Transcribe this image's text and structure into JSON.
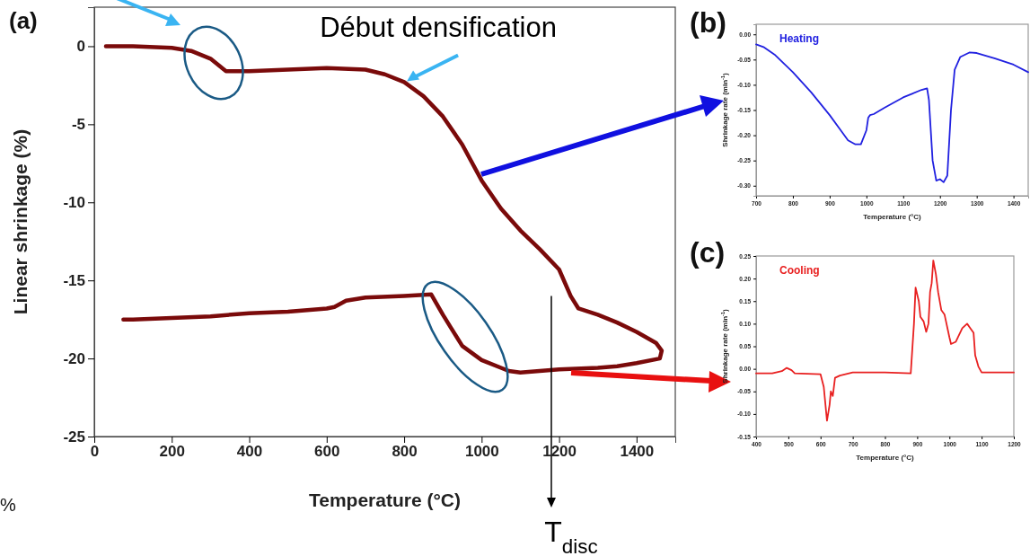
{
  "chart_data": [
    {
      "type": "line",
      "xlabel": "Temperature (°C)",
      "ylabel": "Linear shrinkage (%)",
      "xlim": [
        0,
        1500
      ],
      "ylim": [
        -25,
        2.5
      ],
      "xticks": [
        0,
        200,
        400,
        600,
        800,
        1000,
        1200,
        1400
      ],
      "yticks": [
        -25,
        -20,
        -15,
        -10,
        -5,
        0
      ],
      "grid": false,
      "legend": false,
      "series": [
        {
          "color": "#7a0a0a",
          "x": [
            30,
            100,
            200,
            250,
            300,
            340,
            360,
            400,
            500,
            600,
            700,
            750,
            800,
            850,
            900,
            950,
            1000,
            1050,
            1100,
            1150,
            1200,
            1230,
            1250,
            1300,
            1350,
            1400,
            1450,
            1465,
            1460,
            1400,
            1350,
            1300,
            1200,
            1100,
            1070,
            1050,
            1000,
            950,
            920,
            900,
            870,
            800,
            700,
            650,
            620,
            600,
            500,
            400,
            300,
            200,
            100,
            75
          ],
          "values": [
            0,
            0,
            -0.1,
            -0.3,
            -0.8,
            -1.6,
            -1.6,
            -1.6,
            -1.5,
            -1.4,
            -1.5,
            -1.8,
            -2.3,
            -3.2,
            -4.5,
            -6.3,
            -8.6,
            -10.4,
            -11.8,
            -13,
            -14.3,
            -16,
            -16.8,
            -17.2,
            -17.7,
            -18.3,
            -19,
            -19.5,
            -20,
            -20.3,
            -20.5,
            -20.6,
            -20.7,
            -20.9,
            -20.8,
            -20.6,
            -20.1,
            -19.2,
            -18,
            -17.2,
            -15.9,
            -16,
            -16.1,
            -16.3,
            -16.7,
            -16.8,
            -17,
            -17.1,
            -17.3,
            -17.4,
            -17.5,
            -17.5
          ]
        }
      ],
      "ref_lines": [
        {
          "axis": "x",
          "value": 1180,
          "label": "T$_{disc}$",
          "color": "#000000"
        }
      ],
      "annotations": [
        "(a)",
        {
          "text": "Début densification",
          "x": 800,
          "y": -2.3
        },
        "%"
      ]
    },
    {
      "type": "line",
      "xlabel": "Temperature (°C)",
      "ylabel": "Shrinkage rate (min$^{-1}$)",
      "xlim": [
        700,
        1440
      ],
      "ylim": [
        -0.32,
        0.02
      ],
      "xticks": [
        700,
        800,
        900,
        1000,
        1100,
        1200,
        1300,
        1400
      ],
      "yticks": [
        {
          "value": -0.3,
          "label": "-0.30"
        },
        {
          "value": -0.25,
          "label": "-0.25"
        },
        {
          "value": -0.2,
          "label": "-0.20"
        },
        {
          "value": -0.15,
          "label": "-0.15"
        },
        {
          "value": -0.1,
          "label": "-0.10"
        },
        {
          "value": -0.05,
          "label": "-0.05"
        },
        {
          "value": 0,
          "label": "0.00"
        }
      ],
      "grid": false,
      "legend": "top left",
      "series": [
        {
          "name": "Heating",
          "color": "#2020e0",
          "x": [
            700,
            720,
            750,
            800,
            850,
            900,
            930,
            950,
            970,
            985,
            1000,
            1005,
            1010,
            1020,
            1050,
            1100,
            1150,
            1165,
            1170,
            1180,
            1190,
            1200,
            1210,
            1220,
            1230,
            1240,
            1255,
            1280,
            1300,
            1350,
            1400,
            1440
          ],
          "values": [
            -0.02,
            -0.025,
            -0.04,
            -0.075,
            -0.115,
            -0.16,
            -0.19,
            -0.21,
            -0.218,
            -0.218,
            -0.19,
            -0.165,
            -0.16,
            -0.158,
            -0.145,
            -0.125,
            -0.11,
            -0.107,
            -0.13,
            -0.25,
            -0.29,
            -0.287,
            -0.293,
            -0.28,
            -0.15,
            -0.07,
            -0.045,
            -0.036,
            -0.037,
            -0.048,
            -0.06,
            -0.075
          ]
        }
      ],
      "annotations": [
        "(b)"
      ]
    },
    {
      "type": "line",
      "xlabel": "Temperature (°C)",
      "ylabel": "Shrinkage rate (min$^{-1}$)",
      "xlim": [
        400,
        1200
      ],
      "ylim": [
        -0.15,
        0.25
      ],
      "xticks": [
        400,
        500,
        600,
        700,
        800,
        900,
        1000,
        1100,
        1200
      ],
      "yticks": [
        {
          "value": -0.15,
          "label": "-0.15"
        },
        {
          "value": -0.1,
          "label": "-0.10"
        },
        {
          "value": -0.05,
          "label": "-0.05"
        },
        {
          "value": 0,
          "label": "0.00"
        },
        {
          "value": 0.05,
          "label": "0.05"
        },
        {
          "value": 0.1,
          "label": "0.10"
        },
        {
          "value": 0.15,
          "label": "0.15"
        },
        {
          "value": 0.2,
          "label": "0.20"
        },
        {
          "value": 0.25,
          "label": "0.25"
        }
      ],
      "grid": false,
      "legend": "top left",
      "series": [
        {
          "name": "Cooling",
          "color": "#e82020",
          "x": [
            400,
            450,
            480,
            495,
            510,
            520,
            600,
            610,
            620,
            628,
            632,
            638,
            645,
            660,
            700,
            800,
            880,
            890,
            895,
            905,
            910,
            920,
            928,
            935,
            940,
            945,
            950,
            958,
            965,
            975,
            985,
            1000,
            1005,
            1020,
            1040,
            1055,
            1065,
            1075,
            1080,
            1090,
            1100,
            1150,
            1200
          ],
          "values": [
            -0.01,
            -0.01,
            -0.005,
            0.002,
            -0.003,
            -0.01,
            -0.012,
            -0.04,
            -0.115,
            -0.08,
            -0.05,
            -0.06,
            -0.02,
            -0.015,
            -0.008,
            -0.008,
            -0.01,
            0.1,
            0.18,
            0.15,
            0.115,
            0.105,
            0.082,
            0.1,
            0.17,
            0.19,
            0.24,
            0.21,
            0.17,
            0.13,
            0.12,
            0.07,
            0.055,
            0.06,
            0.09,
            0.1,
            0.09,
            0.08,
            0.03,
            0.005,
            -0.008,
            -0.008,
            -0.008
          ]
        }
      ],
      "annotations": [
        "(c)"
      ]
    }
  ]
}
